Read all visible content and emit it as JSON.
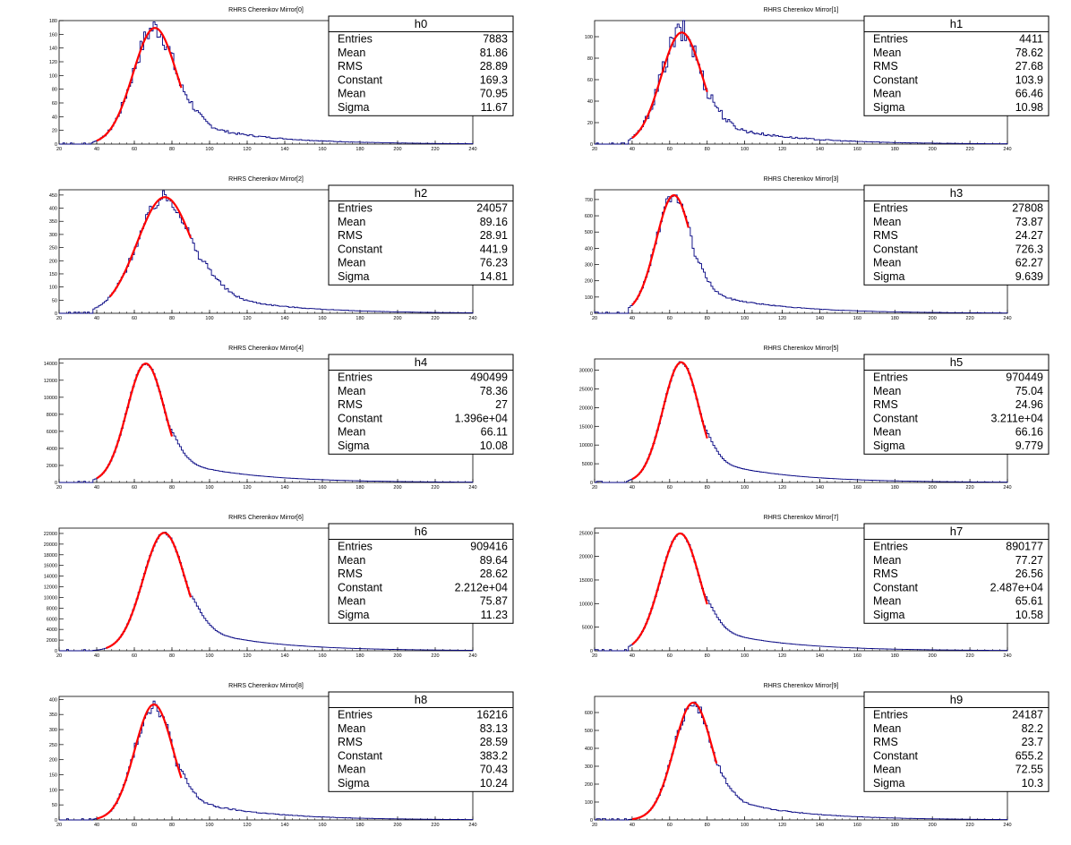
{
  "colors": {
    "histogram": "#000080",
    "fit": "#ff0000",
    "frame": "#000000",
    "background": "#ffffff"
  },
  "chart_data": [
    {
      "type": "histogram",
      "title": "RHRS Cherenkov Mirror[0]",
      "xlim": [
        20,
        240
      ],
      "ylim": [
        0,
        180
      ],
      "xticks": [
        20,
        40,
        60,
        80,
        100,
        120,
        140,
        160,
        180,
        200,
        220,
        240
      ],
      "yticks": [
        0,
        20,
        40,
        60,
        80,
        100,
        120,
        140,
        160,
        180
      ],
      "fit": {
        "function": "gaus",
        "range": [
          40,
          85
        ]
      },
      "stats": {
        "name": "h0",
        "rows": [
          [
            "Entries",
            "7883"
          ],
          [
            "Mean",
            "81.86"
          ],
          [
            "RMS",
            "28.89"
          ],
          [
            "Constant",
            "169.3"
          ],
          [
            "Mean",
            "70.95"
          ],
          [
            "Sigma",
            "11.67"
          ]
        ]
      },
      "constant": 169.3,
      "mean": 70.95,
      "sigma": 11.67
    },
    {
      "type": "histogram",
      "title": "RHRS Cherenkov Mirror[1]",
      "xlim": [
        20,
        240
      ],
      "ylim": [
        0,
        115
      ],
      "xticks": [
        20,
        40,
        60,
        80,
        100,
        120,
        140,
        160,
        180,
        200,
        220,
        240
      ],
      "yticks": [
        0,
        20,
        40,
        60,
        80,
        100
      ],
      "fit": {
        "function": "gaus",
        "range": [
          40,
          80
        ]
      },
      "stats": {
        "name": "h1",
        "rows": [
          [
            "Entries",
            "4411"
          ],
          [
            "Mean",
            "78.62"
          ],
          [
            "RMS",
            "27.68"
          ],
          [
            "Constant",
            "103.9"
          ],
          [
            "Mean",
            "66.46"
          ],
          [
            "Sigma",
            "10.98"
          ]
        ]
      },
      "constant": 103.9,
      "mean": 66.46,
      "sigma": 10.98
    },
    {
      "type": "histogram",
      "title": "RHRS Cherenkov Mirror[2]",
      "xlim": [
        20,
        240
      ],
      "ylim": [
        0,
        470
      ],
      "xticks": [
        20,
        40,
        60,
        80,
        100,
        120,
        140,
        160,
        180,
        200,
        220,
        240
      ],
      "yticks": [
        0,
        50,
        100,
        150,
        200,
        250,
        300,
        350,
        400,
        450
      ],
      "fit": {
        "function": "gaus",
        "range": [
          47,
          90
        ]
      },
      "stats": {
        "name": "h2",
        "rows": [
          [
            "Entries",
            "24057"
          ],
          [
            "Mean",
            "89.16"
          ],
          [
            "RMS",
            "28.91"
          ],
          [
            "Constant",
            "441.9"
          ],
          [
            "Mean",
            "76.23"
          ],
          [
            "Sigma",
            "14.81"
          ]
        ]
      },
      "constant": 441.9,
      "mean": 76.23,
      "sigma": 14.81
    },
    {
      "type": "histogram",
      "title": "RHRS Cherenkov Mirror[3]",
      "xlim": [
        20,
        240
      ],
      "ylim": [
        0,
        760
      ],
      "xticks": [
        20,
        40,
        60,
        80,
        100,
        120,
        140,
        160,
        180,
        200,
        220,
        240
      ],
      "yticks": [
        0,
        100,
        200,
        300,
        400,
        500,
        600,
        700
      ],
      "fit": {
        "function": "gaus",
        "range": [
          40,
          70
        ]
      },
      "stats": {
        "name": "h3",
        "rows": [
          [
            "Entries",
            "27808"
          ],
          [
            "Mean",
            "73.87"
          ],
          [
            "RMS",
            "24.27"
          ],
          [
            "Constant",
            "726.3"
          ],
          [
            "Mean",
            "62.27"
          ],
          [
            "Sigma",
            "9.639"
          ]
        ]
      },
      "constant": 726.3,
      "mean": 62.27,
      "sigma": 9.639
    },
    {
      "type": "histogram",
      "title": "RHRS Cherenkov Mirror[4]",
      "xlim": [
        20,
        240
      ],
      "ylim": [
        0,
        14500
      ],
      "xticks": [
        20,
        40,
        60,
        80,
        100,
        120,
        140,
        160,
        180,
        200,
        220,
        240
      ],
      "yticks": [
        0,
        2000,
        4000,
        6000,
        8000,
        10000,
        12000,
        14000
      ],
      "fit": {
        "function": "gaus",
        "range": [
          40,
          80
        ]
      },
      "stats": {
        "name": "h4",
        "rows": [
          [
            "Entries",
            "490499"
          ],
          [
            "Mean",
            "78.36"
          ],
          [
            "RMS",
            "27"
          ],
          [
            "Constant",
            "1.396e+04"
          ],
          [
            "Mean",
            "66.11"
          ],
          [
            "Sigma",
            "10.08"
          ]
        ]
      },
      "constant": 13960,
      "mean": 66.11,
      "sigma": 10.08
    },
    {
      "type": "histogram",
      "title": "RHRS Cherenkov Mirror[5]",
      "xlim": [
        20,
        240
      ],
      "ylim": [
        0,
        33000
      ],
      "xticks": [
        20,
        40,
        60,
        80,
        100,
        120,
        140,
        160,
        180,
        200,
        220,
        240
      ],
      "yticks": [
        0,
        5000,
        10000,
        15000,
        20000,
        25000,
        30000
      ],
      "fit": {
        "function": "gaus",
        "range": [
          40,
          80
        ]
      },
      "stats": {
        "name": "h5",
        "rows": [
          [
            "Entries",
            "970449"
          ],
          [
            "Mean",
            "75.04"
          ],
          [
            "RMS",
            "24.96"
          ],
          [
            "Constant",
            "3.211e+04"
          ],
          [
            "Mean",
            "66.16"
          ],
          [
            "Sigma",
            "9.779"
          ]
        ]
      },
      "constant": 32110,
      "mean": 66.16,
      "sigma": 9.779
    },
    {
      "type": "histogram",
      "title": "RHRS Cherenkov Mirror[6]",
      "xlim": [
        20,
        240
      ],
      "ylim": [
        0,
        23000
      ],
      "xticks": [
        20,
        40,
        60,
        80,
        100,
        120,
        140,
        160,
        180,
        200,
        220,
        240
      ],
      "yticks": [
        0,
        2000,
        4000,
        6000,
        8000,
        10000,
        12000,
        14000,
        16000,
        18000,
        20000,
        22000
      ],
      "fit": {
        "function": "gaus",
        "range": [
          45,
          90
        ]
      },
      "stats": {
        "name": "h6",
        "rows": [
          [
            "Entries",
            "909416"
          ],
          [
            "Mean",
            "89.64"
          ],
          [
            "RMS",
            "28.62"
          ],
          [
            "Constant",
            "2.212e+04"
          ],
          [
            "Mean",
            "75.87"
          ],
          [
            "Sigma",
            "11.23"
          ]
        ]
      },
      "constant": 22120,
      "mean": 75.87,
      "sigma": 11.23
    },
    {
      "type": "histogram",
      "title": "RHRS Cherenkov Mirror[7]",
      "xlim": [
        20,
        240
      ],
      "ylim": [
        0,
        26000
      ],
      "xticks": [
        20,
        40,
        60,
        80,
        100,
        120,
        140,
        160,
        180,
        200,
        220,
        240
      ],
      "yticks": [
        0,
        5000,
        10000,
        15000,
        20000,
        25000
      ],
      "fit": {
        "function": "gaus",
        "range": [
          40,
          80
        ]
      },
      "stats": {
        "name": "h7",
        "rows": [
          [
            "Entries",
            "890177"
          ],
          [
            "Mean",
            "77.27"
          ],
          [
            "RMS",
            "26.56"
          ],
          [
            "Constant",
            "2.487e+04"
          ],
          [
            "Mean",
            "65.61"
          ],
          [
            "Sigma",
            "10.58"
          ]
        ]
      },
      "constant": 24870,
      "mean": 65.61,
      "sigma": 10.58
    },
    {
      "type": "histogram",
      "title": "RHRS Cherenkov Mirror[8]",
      "xlim": [
        20,
        240
      ],
      "ylim": [
        0,
        410
      ],
      "xticks": [
        20,
        40,
        60,
        80,
        100,
        120,
        140,
        160,
        180,
        200,
        220,
        240
      ],
      "yticks": [
        0,
        50,
        100,
        150,
        200,
        250,
        300,
        350,
        400
      ],
      "fit": {
        "function": "gaus",
        "range": [
          40,
          85
        ]
      },
      "stats": {
        "name": "h8",
        "rows": [
          [
            "Entries",
            "16216"
          ],
          [
            "Mean",
            "83.13"
          ],
          [
            "RMS",
            "28.59"
          ],
          [
            "Constant",
            "383.2"
          ],
          [
            "Mean",
            "70.43"
          ],
          [
            "Sigma",
            "10.24"
          ]
        ]
      },
      "constant": 383.2,
      "mean": 70.43,
      "sigma": 10.24
    },
    {
      "type": "histogram",
      "title": "RHRS Cherenkov Mirror[9]",
      "xlim": [
        20,
        240
      ],
      "ylim": [
        0,
        690
      ],
      "xticks": [
        20,
        40,
        60,
        80,
        100,
        120,
        140,
        160,
        180,
        200,
        220,
        240
      ],
      "yticks": [
        0,
        100,
        200,
        300,
        400,
        500,
        600
      ],
      "fit": {
        "function": "gaus",
        "range": [
          40,
          85
        ]
      },
      "stats": {
        "name": "h9",
        "rows": [
          [
            "Entries",
            "24187"
          ],
          [
            "Mean",
            "82.2"
          ],
          [
            "RMS",
            "23.7"
          ],
          [
            "Constant",
            "655.2"
          ],
          [
            "Mean",
            "72.55"
          ],
          [
            "Sigma",
            "10.3"
          ]
        ]
      },
      "constant": 655.2,
      "mean": 72.55,
      "sigma": 10.3
    }
  ]
}
